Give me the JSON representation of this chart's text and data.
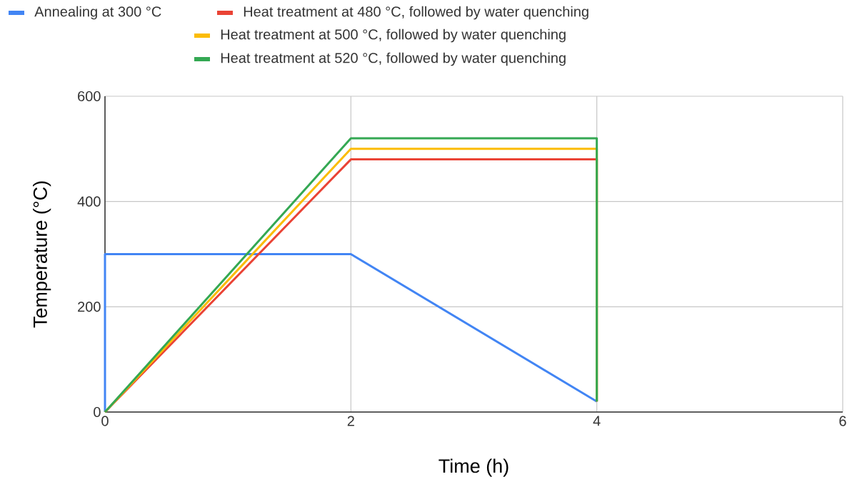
{
  "chart_data": {
    "type": "line",
    "xlabel": "Time (h)",
    "ylabel": "Temperature (°C)",
    "series": [
      {
        "name": "Annealing at 300 °C",
        "color": "#4285f4",
        "x": [
          0,
          0,
          2,
          4
        ],
        "values": [
          0,
          300,
          300,
          20
        ]
      },
      {
        "name": "Heat treatment at 480 °C, followed by water quenching",
        "color": "#ea4335",
        "x": [
          0,
          2,
          4,
          4
        ],
        "values": [
          0,
          480,
          480,
          20
        ]
      },
      {
        "name": "Heat treatment at 500 °C, followed by water quenching",
        "color": "#fbbc04",
        "x": [
          0,
          2,
          4,
          4
        ],
        "values": [
          0,
          500,
          500,
          20
        ]
      },
      {
        "name": "Heat treatment at 520 °C, followed by water quenching",
        "color": "#34a853",
        "x": [
          0,
          2,
          4,
          4
        ],
        "values": [
          0,
          520,
          520,
          20
        ]
      }
    ],
    "xlim": [
      0,
      6
    ],
    "xticks": [
      0,
      2,
      4,
      6
    ],
    "ylim": [
      0,
      600
    ],
    "yticks": [
      0,
      200,
      400,
      600
    ],
    "grid": true,
    "legend": "top",
    "marker": "none",
    "line_style": "solid"
  }
}
